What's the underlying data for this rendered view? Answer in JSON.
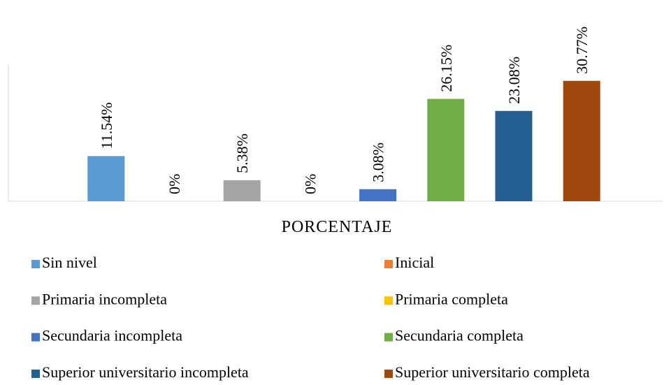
{
  "chart_data": {
    "type": "bar",
    "categories": [
      "PORCENTAJE"
    ],
    "ylim": [
      0,
      35
    ],
    "series": [
      {
        "name": "Sin nivel",
        "color": "#5b9bd5",
        "values": [
          11.54
        ],
        "value_labels": [
          "11.54%"
        ]
      },
      {
        "name": "Inicial",
        "color": "#ed7d31",
        "values": [
          0
        ],
        "value_labels": [
          "0%"
        ]
      },
      {
        "name": "Primaria incompleta",
        "color": "#a5a5a5",
        "values": [
          5.38
        ],
        "value_labels": [
          "5.38%"
        ]
      },
      {
        "name": "Primaria completa",
        "color": "#ffc000",
        "values": [
          0
        ],
        "value_labels": [
          "0%"
        ]
      },
      {
        "name": "Secundaria incompleta",
        "color": "#4472c4",
        "values": [
          3.08
        ],
        "value_labels": [
          "3.08%"
        ]
      },
      {
        "name": "Secundaria completa",
        "color": "#70ad47",
        "values": [
          26.15
        ],
        "value_labels": [
          "26.15%"
        ]
      },
      {
        "name": "Superior universitario incompleta",
        "color": "#255e91",
        "values": [
          23.08
        ],
        "value_labels": [
          "23.08%"
        ]
      },
      {
        "name": "Superior universitario completa",
        "color": "#9e480e",
        "values": [
          30.77
        ],
        "value_labels": [
          "30.77%"
        ]
      }
    ],
    "legend": "bottom"
  }
}
